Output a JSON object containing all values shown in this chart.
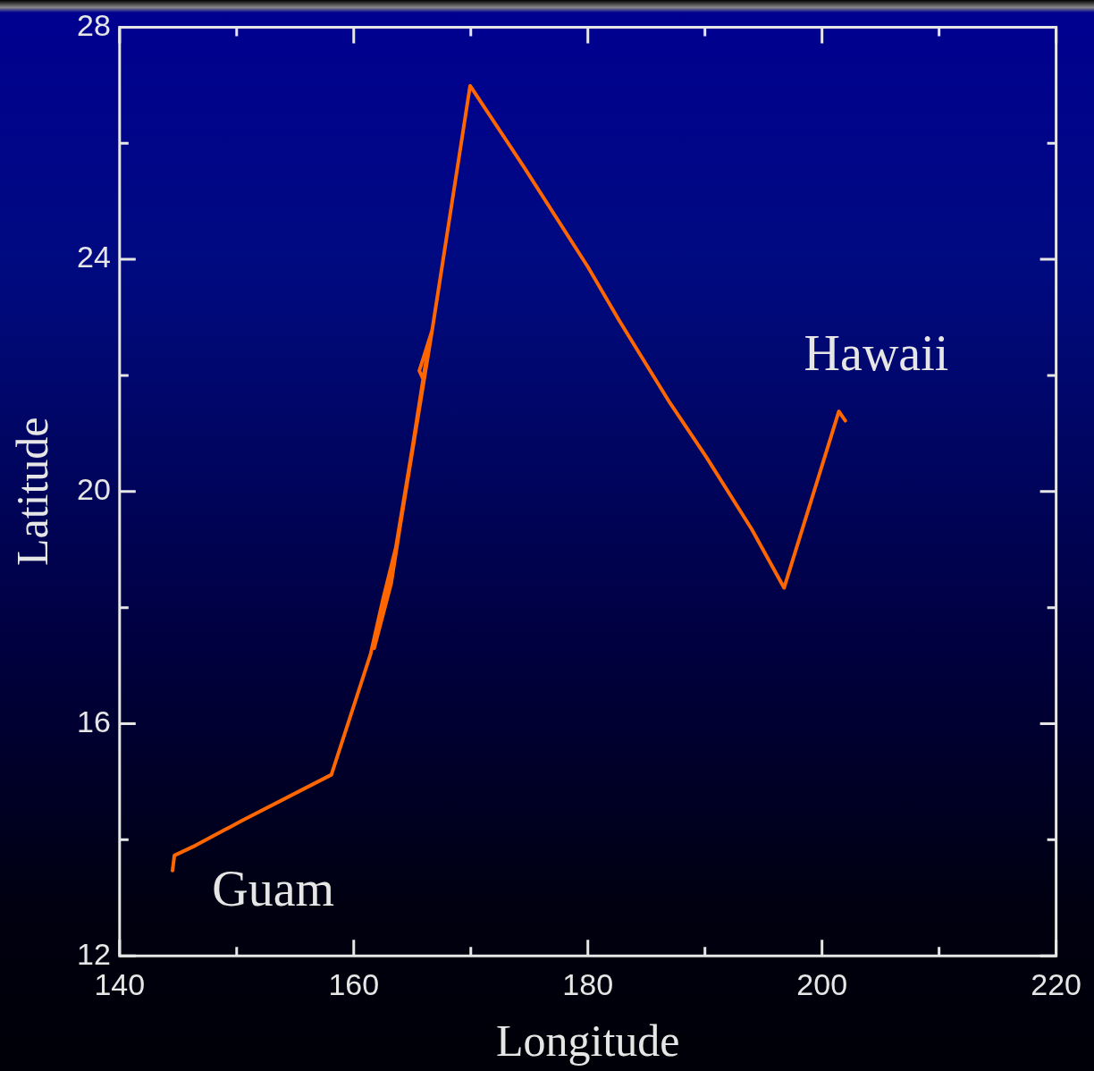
{
  "chart_data": {
    "type": "line",
    "xlabel": "Longitude",
    "ylabel": "Latitude",
    "series": [
      {
        "color": "#ff6600",
        "x": [
          144.52,
          144.68,
          146.47,
          150.37,
          158.09,
          161.44,
          162.46,
          163.6,
          165.97,
          165.6,
          166.7,
          166.1,
          163.2,
          161.75,
          163.8,
          166.7,
          169.94,
          174.54,
          180.0,
          182.7,
          187.0,
          190.1,
          194.0,
          196.76,
          201.44,
          201.99
        ],
        "values": [
          13.47,
          13.73,
          13.9,
          14.32,
          15.12,
          17.2,
          18.11,
          19.04,
          21.92,
          22.08,
          22.78,
          22.16,
          18.42,
          17.3,
          19.2,
          22.78,
          26.99,
          25.59,
          23.87,
          22.94,
          21.53,
          20.6,
          19.35,
          18.34,
          21.38,
          21.22
        ]
      }
    ],
    "xlim": [
      140,
      220
    ],
    "xticks": [
      140,
      {
        "value": 150,
        "label": null
      },
      160,
      {
        "value": 170,
        "label": null
      },
      180,
      {
        "value": 190,
        "label": null
      },
      200,
      {
        "value": 210,
        "label": null
      },
      220
    ],
    "ylim": [
      12,
      28
    ],
    "yticks": [
      12,
      {
        "value": 14,
        "label": null
      },
      16,
      {
        "value": 18,
        "label": null
      },
      20,
      {
        "value": 22,
        "label": null
      },
      24,
      {
        "value": 26,
        "label": null
      },
      28
    ],
    "annotations": [
      "Guam",
      "Hawaii"
    ],
    "grid": false,
    "legend": false,
    "marker": "none",
    "line_style": "solid"
  }
}
